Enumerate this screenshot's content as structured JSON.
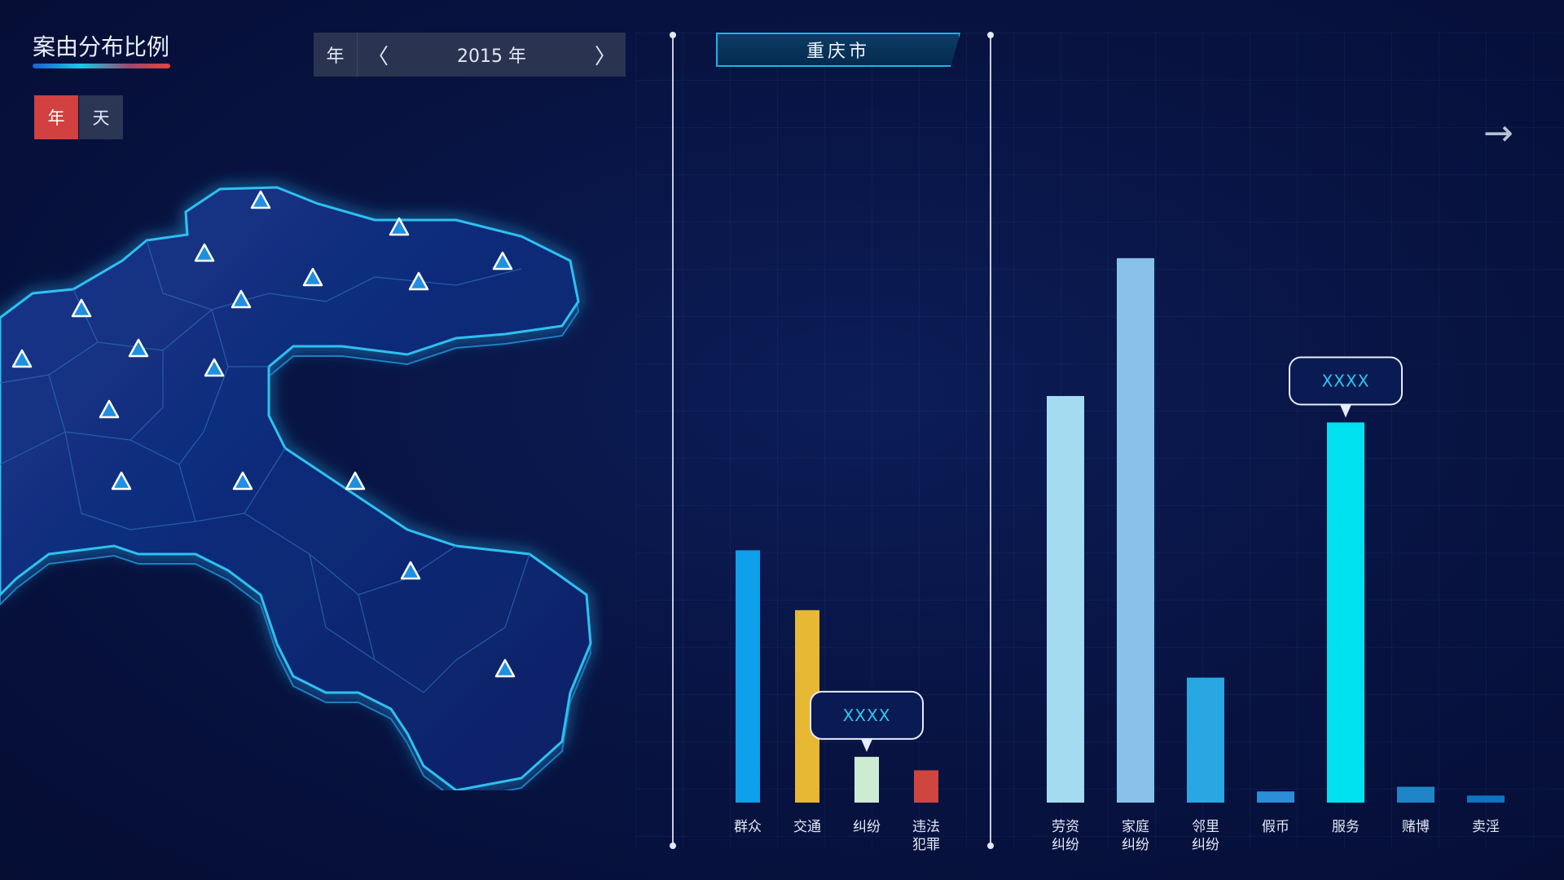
{
  "header": {
    "title": "案由分布比例"
  },
  "granularity": {
    "year_label": "年",
    "day_label": "天",
    "selected": "年"
  },
  "year_nav": {
    "label": "年",
    "prev_icon": "〈",
    "value": "2015 年",
    "next_icon": "〉"
  },
  "city": {
    "name": "重庆市"
  },
  "nav": {
    "next_icon": "arrow-right-icon"
  },
  "map": {
    "marker_icon": "triangle-marker-icon",
    "region_color": "#0f2a78",
    "glow_color": "#27b8f0"
  },
  "chart_data": [
    {
      "type": "bar",
      "title": "",
      "categories": [
        "群众",
        "交通",
        "纠纷",
        "违法\n犯罪"
      ],
      "values": [
        430,
        328,
        78,
        55
      ],
      "colors": [
        "#0ea0ea",
        "#e6b834",
        "#cdebd1",
        "#cf4540"
      ],
      "ylim": [
        0,
        1000
      ],
      "tooltip": {
        "category": "纠纷",
        "text": "XXXX"
      }
    },
    {
      "type": "bar",
      "title": "",
      "categories": [
        "劳资\n纠纷",
        "家庭\n纠纷",
        "邻里\n纠纷",
        "假币",
        "服务",
        "赌博",
        "卖淫"
      ],
      "values": [
        693,
        928,
        213,
        19,
        648,
        27,
        12
      ],
      "colors": [
        "#a4dbf1",
        "#88c2ea",
        "#29a7e2",
        "#2b8ed9",
        "#00e1ef",
        "#1e86c7",
        "#0e74c2"
      ],
      "ylim": [
        0,
        1000
      ],
      "tooltip": {
        "category": "服务",
        "text": "XXXX"
      }
    }
  ]
}
